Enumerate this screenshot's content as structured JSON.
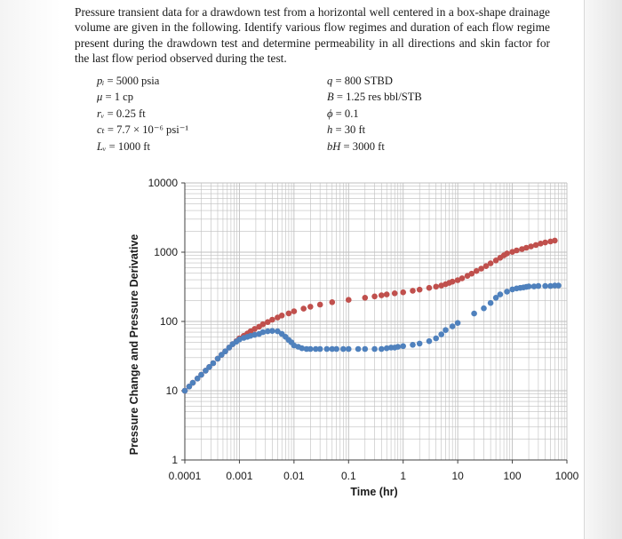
{
  "problem": {
    "text": "Pressure transient data for a drawdown test from a horizontal well centered in a box-shape drainage volume are given in the following. Identify various flow regimes and duration of each flow regime present during the drawdown test and determine permeability in all directions and skin factor for the last flow period observed during the test."
  },
  "givens_left": [
    {
      "symbol": "pᵢ",
      "value": " = 5000 psia"
    },
    {
      "symbol": "μ",
      "value": " = 1 cp"
    },
    {
      "symbol": "rᵥ",
      "value": " = 0.25 ft"
    },
    {
      "symbol": "cₜ",
      "value": " = 7.7 × 10⁻⁶ psi⁻¹"
    },
    {
      "symbol": "Lᵥ",
      "value": " = 1000 ft"
    }
  ],
  "givens_right": [
    {
      "symbol": "q",
      "value": " = 800 STBD"
    },
    {
      "symbol": "B",
      "value": " = 1.25 res bbl/STB"
    },
    {
      "symbol": "ϕ",
      "value": " = 0.1"
    },
    {
      "symbol": "h",
      "value": " = 30 ft"
    },
    {
      "symbol": "bH",
      "value": " = 3000 ft"
    }
  ],
  "colors": {
    "pressure_change": "#c0504d",
    "derivative": "#4f81bd",
    "grid": "#bfbfbf"
  },
  "chart_data": {
    "type": "scatter",
    "xscale": "log",
    "yscale": "log",
    "xlim": [
      0.0001,
      1000
    ],
    "ylim": [
      1,
      10000
    ],
    "xlabel": "Time (hr)",
    "ylabel": "Pressure Change and Pressure Derivative",
    "xticks": [
      "0.0001",
      "0.001",
      "0.01",
      "0.1",
      "1",
      "10",
      "100",
      "1000"
    ],
    "yticks": [
      "1",
      "10",
      "100",
      "1000",
      "10000"
    ],
    "grid": true,
    "series": [
      {
        "key": "pressure_change",
        "x": [
          0.0001,
          0.00012,
          0.00014,
          0.00017,
          0.0002,
          0.00024,
          0.00028,
          0.00033,
          0.0004,
          0.00047,
          0.00055,
          0.00065,
          0.00075,
          0.00088,
          0.001,
          0.0012,
          0.0014,
          0.0016,
          0.0019,
          0.0023,
          0.0027,
          0.0033,
          0.004,
          0.005,
          0.006,
          0.008,
          0.01,
          0.015,
          0.02,
          0.03,
          0.05,
          0.1,
          0.2,
          0.3,
          0.4,
          0.5,
          0.7,
          1,
          1.5,
          2,
          3,
          4,
          5,
          6,
          7,
          8,
          10,
          12,
          15,
          18,
          22,
          27,
          33,
          40,
          50,
          60,
          70,
          80,
          100,
          120,
          150,
          180,
          220,
          270,
          330,
          400,
          500,
          600
        ],
        "y": [
          10,
          11.5,
          13,
          15,
          17,
          19.5,
          22,
          25,
          29,
          33,
          37,
          42,
          47,
          52,
          57,
          62,
          67,
          72,
          78,
          84,
          91,
          98,
          106,
          114,
          122,
          131,
          140,
          153,
          163,
          175,
          190,
          205,
          220,
          230,
          238,
          245,
          255,
          263,
          278,
          288,
          305,
          318,
          330,
          345,
          360,
          375,
          395,
          420,
          455,
          490,
          535,
          580,
          630,
          690,
          760,
          830,
          900,
          960,
          1010,
          1060,
          1110,
          1160,
          1210,
          1270,
          1330,
          1380,
          1430,
          1470
        ]
      },
      {
        "key": "derivative",
        "x": [
          0.0001,
          0.00012,
          0.00014,
          0.00017,
          0.0002,
          0.00024,
          0.00028,
          0.00033,
          0.0004,
          0.00047,
          0.00055,
          0.00065,
          0.00075,
          0.00088,
          0.001,
          0.0012,
          0.0014,
          0.0016,
          0.0019,
          0.0023,
          0.0027,
          0.0033,
          0.004,
          0.005,
          0.006,
          0.007,
          0.008,
          0.009,
          0.01,
          0.012,
          0.014,
          0.017,
          0.02,
          0.025,
          0.03,
          0.04,
          0.05,
          0.06,
          0.08,
          0.1,
          0.15,
          0.2,
          0.3,
          0.4,
          0.5,
          0.6,
          0.7,
          0.8,
          1,
          1.5,
          2,
          3,
          4,
          5,
          6,
          8,
          10,
          20,
          30,
          40,
          50,
          60,
          80,
          100,
          120,
          140,
          160,
          180,
          200,
          250,
          300,
          400,
          500,
          600,
          700
        ],
        "y": [
          10,
          11.5,
          13,
          15,
          17,
          19.5,
          22,
          25,
          29,
          33,
          37,
          42,
          47,
          51,
          55,
          58,
          60,
          62,
          64,
          66,
          70,
          72,
          73,
          72,
          66,
          60,
          54,
          50,
          45,
          43,
          41,
          40,
          40,
          40,
          40,
          40,
          40,
          40,
          40,
          40,
          40,
          40,
          40,
          40,
          41,
          42,
          42,
          43,
          44,
          46,
          48,
          52,
          57,
          65,
          75,
          85,
          95,
          130,
          155,
          185,
          220,
          245,
          270,
          290,
          300,
          305,
          310,
          315,
          320,
          320,
          325,
          325,
          325,
          330,
          330
        ]
      }
    ]
  }
}
